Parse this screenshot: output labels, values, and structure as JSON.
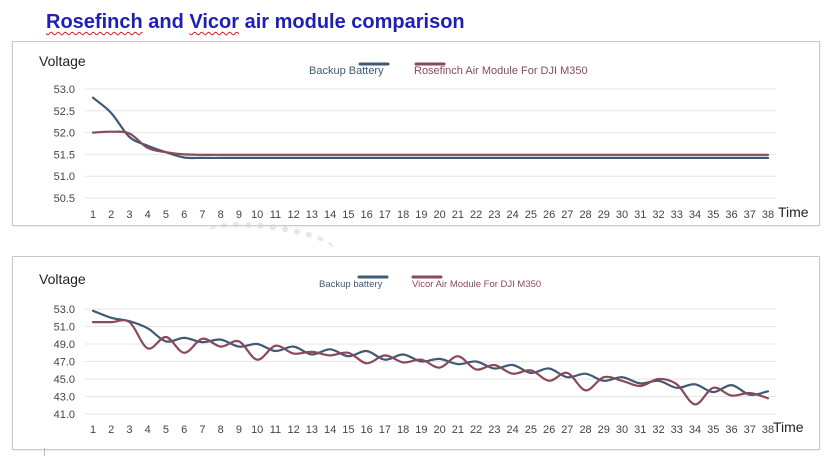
{
  "title": "Rosefinch and Vicor air module comparison",
  "title_parts": [
    "Rosefinch",
    " and ",
    "Vicor",
    " air module comparison"
  ],
  "chart_data": [
    {
      "type": "line",
      "ylabel": "Voltage",
      "xlabel": "Time",
      "x": [
        1,
        2,
        3,
        4,
        5,
        6,
        7,
        8,
        9,
        10,
        11,
        12,
        13,
        14,
        15,
        16,
        17,
        18,
        19,
        20,
        21,
        22,
        23,
        24,
        25,
        26,
        27,
        28,
        29,
        30,
        31,
        32,
        33,
        34,
        35,
        36,
        37,
        38
      ],
      "ylim": [
        50.5,
        53.0
      ],
      "yticks": [
        "50.5",
        "51.0",
        "51.5",
        "52.0",
        "52.5",
        "53.0"
      ],
      "grid": "horizontal",
      "legend_position": "top-center",
      "series": [
        {
          "name": "Backup Battery",
          "color": "#3f5a74",
          "values": [
            52.8,
            52.45,
            51.9,
            51.7,
            51.55,
            51.43,
            51.42,
            51.42,
            51.42,
            51.42,
            51.42,
            51.42,
            51.42,
            51.42,
            51.42,
            51.42,
            51.42,
            51.42,
            51.42,
            51.42,
            51.42,
            51.42,
            51.42,
            51.42,
            51.42,
            51.42,
            51.42,
            51.42,
            51.42,
            51.42,
            51.42,
            51.42,
            51.42,
            51.42,
            51.42,
            51.42,
            51.42,
            51.42
          ]
        },
        {
          "name": "Rosefinch Air Module For DJI M350",
          "color": "#8a4a5a",
          "values": [
            52.0,
            52.02,
            51.98,
            51.65,
            51.55,
            51.5,
            51.49,
            51.49,
            51.49,
            51.49,
            51.49,
            51.49,
            51.49,
            51.49,
            51.49,
            51.49,
            51.49,
            51.49,
            51.49,
            51.49,
            51.49,
            51.49,
            51.49,
            51.49,
            51.49,
            51.49,
            51.49,
            51.49,
            51.49,
            51.49,
            51.49,
            51.49,
            51.49,
            51.49,
            51.49,
            51.49,
            51.49,
            51.49
          ]
        }
      ]
    },
    {
      "type": "line",
      "ylabel": "Voltage",
      "xlabel": "Time",
      "x": [
        1,
        2,
        3,
        4,
        5,
        6,
        7,
        8,
        9,
        10,
        11,
        12,
        13,
        14,
        15,
        16,
        17,
        18,
        19,
        20,
        21,
        22,
        23,
        24,
        25,
        26,
        27,
        28,
        29,
        30,
        31,
        32,
        33,
        34,
        35,
        36,
        37,
        38
      ],
      "ylim": [
        41.0,
        53.0
      ],
      "yticks": [
        "41.0",
        "43.0",
        "45.0",
        "47.0",
        "49.0",
        "51.0",
        "53.0"
      ],
      "grid": "horizontal",
      "legend_position": "top-center",
      "series": [
        {
          "name": "Backup battery",
          "color": "#3f5a74",
          "values": [
            52.8,
            52.0,
            51.6,
            50.8,
            49.3,
            49.7,
            49.2,
            49.5,
            48.7,
            49.0,
            48.2,
            48.7,
            47.8,
            48.4,
            47.6,
            48.2,
            47.2,
            47.8,
            47.0,
            47.3,
            46.7,
            47.0,
            46.2,
            46.6,
            45.7,
            46.2,
            45.2,
            45.6,
            44.8,
            45.2,
            44.5,
            44.8,
            44.0,
            44.4,
            43.5,
            44.3,
            43.2,
            43.6
          ]
        },
        {
          "name": "Vicor Air Module For DJI M350",
          "color": "#8a4a5a",
          "values": [
            51.5,
            51.5,
            51.5,
            48.5,
            49.8,
            48.0,
            49.6,
            48.7,
            49.3,
            47.2,
            48.8,
            47.9,
            48.1,
            47.7,
            48.0,
            46.8,
            47.7,
            46.9,
            47.2,
            46.3,
            47.6,
            46.1,
            46.6,
            45.6,
            46.0,
            44.8,
            45.7,
            43.7,
            45.2,
            44.8,
            44.2,
            45.0,
            44.4,
            42.1,
            44.0,
            43.1,
            43.4,
            42.8
          ]
        }
      ]
    }
  ]
}
